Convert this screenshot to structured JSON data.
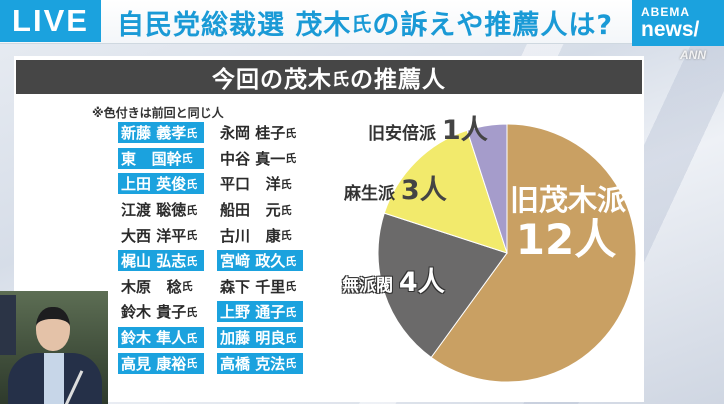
{
  "header": {
    "live_label": "LIVE",
    "headline_part1": "自民党総裁選 茂木",
    "headline_small": "氏",
    "headline_part2": "の訴えや推薦人は?",
    "logo_line1": "ABEMA",
    "logo_line2": "news/",
    "watermark": "ANN"
  },
  "panel": {
    "title_part1": "今回の茂木",
    "title_small": "氏",
    "title_part2": "の推薦人",
    "note": "※色付きは前回と同じ人",
    "honorific": "氏",
    "names": [
      [
        {
          "name": "新藤 義孝",
          "highlight": true
        },
        {
          "name": "永岡 桂子",
          "highlight": false
        }
      ],
      [
        {
          "name": "東   国幹",
          "highlight": true
        },
        {
          "name": "中谷 真一",
          "highlight": false
        }
      ],
      [
        {
          "name": "上田 英俊",
          "highlight": true
        },
        {
          "name": "平口   洋",
          "highlight": false
        }
      ],
      [
        {
          "name": "江渡 聡徳",
          "highlight": false
        },
        {
          "name": "船田   元",
          "highlight": false
        }
      ],
      [
        {
          "name": "大西 洋平",
          "highlight": false
        },
        {
          "name": "古川   康",
          "highlight": false
        }
      ],
      [
        {
          "name": "梶山 弘志",
          "highlight": true
        },
        {
          "name": "宮﨑 政久",
          "highlight": true
        }
      ],
      [
        {
          "name": "木原   稔",
          "highlight": false
        },
        {
          "name": "森下 千里",
          "highlight": false
        }
      ],
      [
        {
          "name": "鈴木 貴子",
          "highlight": false
        },
        {
          "name": "上野 通子",
          "highlight": true
        }
      ],
      [
        {
          "name": "鈴木 隼人",
          "highlight": true
        },
        {
          "name": "加藤 明良",
          "highlight": true
        }
      ],
      [
        {
          "name": "高見 康裕",
          "highlight": true
        },
        {
          "name": "高橋 克法",
          "highlight": true
        }
      ]
    ]
  },
  "colors": {
    "accent_blue": "#1ba2de",
    "title_bar": "#464646",
    "motegi": "#c9a063",
    "none": "#6b6a6a",
    "aso": "#f2ea6c",
    "abe": "#a59ccb"
  },
  "chart_data": {
    "type": "pie",
    "title": "今回の茂木氏の推薦人",
    "unit": "人",
    "total": 20,
    "slices": [
      {
        "label": "旧茂木派",
        "value": 12,
        "display": "12人",
        "color": "#c9a063"
      },
      {
        "label": "無派閥",
        "value": 4,
        "display": "4人",
        "color": "#6b6a6a"
      },
      {
        "label": "麻生派",
        "value": 3,
        "display": "3人",
        "color": "#f2ea6c"
      },
      {
        "label": "旧安倍派",
        "value": 1,
        "display": "1人",
        "color": "#a59ccb"
      }
    ],
    "start_angle": "12 o'clock, clockwise",
    "legend": "inline labels"
  }
}
